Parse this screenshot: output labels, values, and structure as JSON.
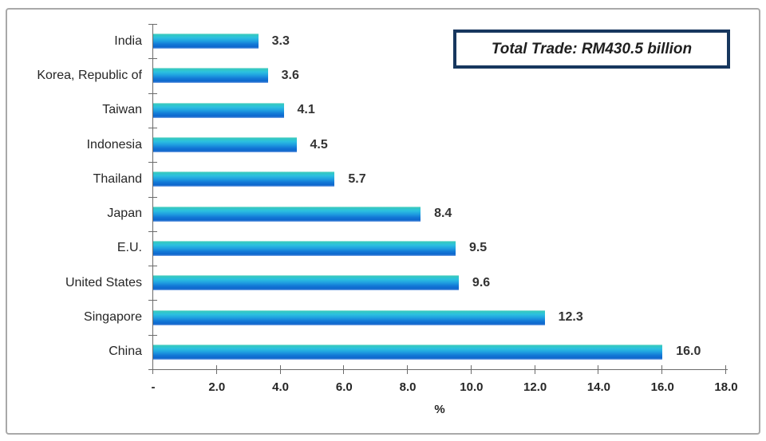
{
  "chart_data": {
    "type": "bar",
    "orientation": "horizontal",
    "title": "",
    "categories": [
      "India",
      "Korea, Republic of",
      "Taiwan",
      "Indonesia",
      "Thailand",
      "Japan",
      "E.U.",
      "United States",
      "Singapore",
      "China"
    ],
    "values": [
      3.3,
      3.6,
      4.1,
      4.5,
      5.7,
      8.4,
      9.5,
      9.6,
      12.3,
      16.0
    ],
    "value_labels": [
      "3.3",
      "3.6",
      "4.1",
      "4.5",
      "5.7",
      "8.4",
      "9.5",
      "9.6",
      "12.3",
      "16.0"
    ],
    "xlabel": "%",
    "xlim": [
      0,
      18
    ],
    "x_ticks": [
      {
        "value": 0,
        "label": "-"
      },
      {
        "value": 2,
        "label": "2.0"
      },
      {
        "value": 4,
        "label": "4.0"
      },
      {
        "value": 6,
        "label": "6.0"
      },
      {
        "value": 8,
        "label": "8.0"
      },
      {
        "value": 10,
        "label": "10.0"
      },
      {
        "value": 12,
        "label": "12.0"
      },
      {
        "value": 14,
        "label": "14.0"
      },
      {
        "value": 16,
        "label": "16.0"
      },
      {
        "value": 18,
        "label": "18.0"
      }
    ],
    "grid": false,
    "legend": false,
    "annotation": "Total Trade: RM430.5 billion"
  },
  "annotation_box": {
    "text": "Total Trade: RM430.5 billion"
  },
  "colors": {
    "bar_gradient": [
      "#c9efe9",
      "#35c9bf",
      "#2bc0e0",
      "#1f9fe0",
      "#1277d6",
      "#0d66cc",
      "#85abe8"
    ],
    "axis": "#6b6b6b",
    "frame_border": "#a9a9a9",
    "annotation_border": "#17375e",
    "text": "#262626"
  }
}
